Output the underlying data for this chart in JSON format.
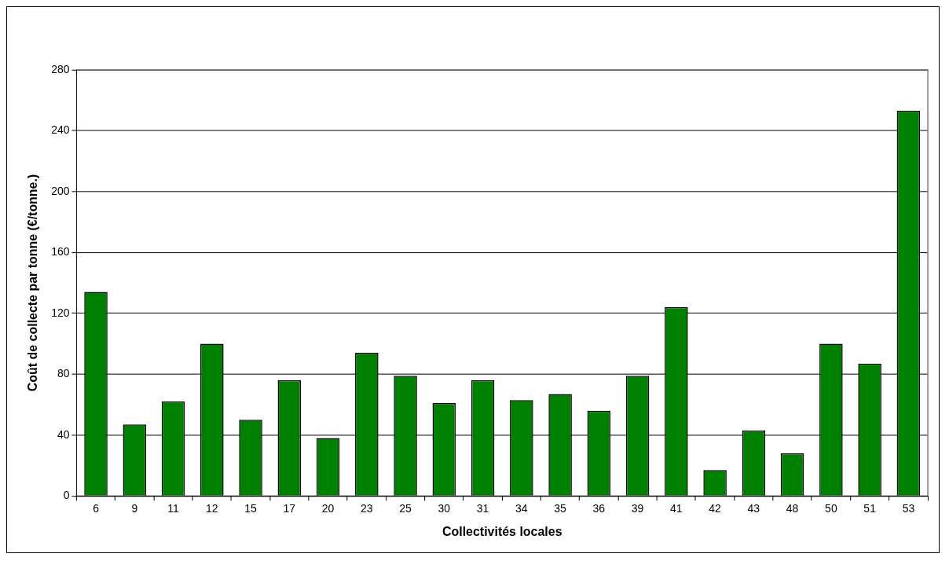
{
  "chart_data": {
    "type": "bar",
    "xlabel": "Collectivités locales",
    "ylabel": "Coût de collecte par tonne (€/tonne.)",
    "categories": [
      "6",
      "9",
      "11",
      "12",
      "15",
      "17",
      "20",
      "23",
      "25",
      "30",
      "31",
      "34",
      "35",
      "36",
      "39",
      "41",
      "42",
      "43",
      "48",
      "50",
      "51",
      "53"
    ],
    "values": [
      134,
      47,
      62,
      100,
      50,
      76,
      38,
      94,
      79,
      61,
      76,
      63,
      67,
      56,
      79,
      124,
      17,
      43,
      28,
      100,
      87,
      253
    ],
    "color": "#008000",
    "ylim": [
      0,
      280
    ],
    "yticks": [
      0,
      40,
      80,
      120,
      160,
      200,
      240,
      280
    ],
    "grid": "y",
    "legend": false
  }
}
